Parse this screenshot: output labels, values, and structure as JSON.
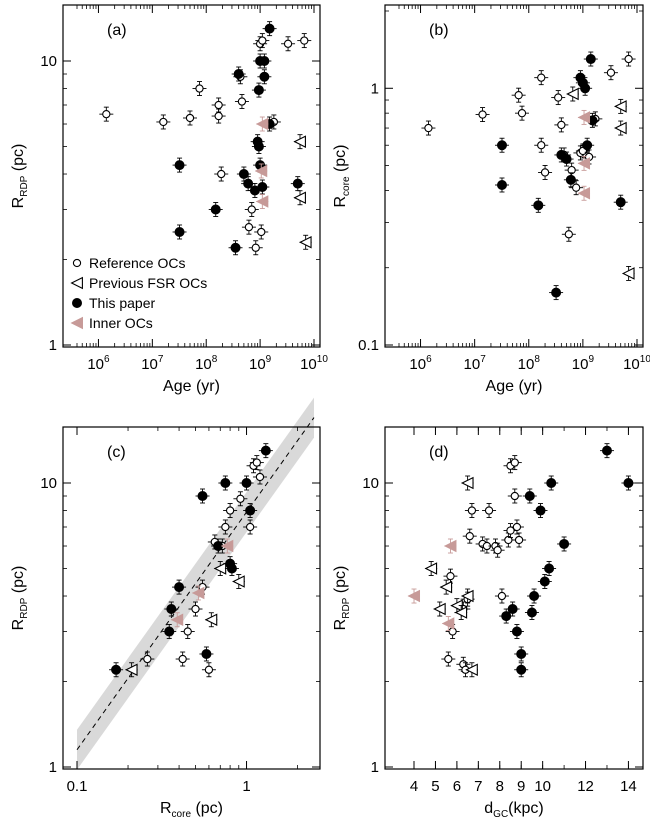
{
  "chart_data": [
    {
      "type": "scatter",
      "panel_tag": "(a)",
      "xlabel": "Age (yr)",
      "ylabel_main": "R",
      "ylabel_sub": "RDP",
      "ylabel_unit": " (pc)",
      "xscale": "log",
      "yscale": "log",
      "xlim": [
        400000,
        10000000000
      ],
      "ylim": [
        1,
        15
      ],
      "x_ticks": [
        {
          "v": 1000000,
          "base": "10",
          "exp": "6"
        },
        {
          "v": 10000000,
          "base": "10",
          "exp": "7"
        },
        {
          "v": 100000000,
          "base": "10",
          "exp": "8"
        },
        {
          "v": 1000000000,
          "base": "10",
          "exp": "9"
        },
        {
          "v": 10000000000,
          "base": "10",
          "exp": "10"
        }
      ],
      "y_ticks": [
        {
          "v": 1,
          "label": "1"
        },
        {
          "v": 10,
          "label": "10"
        }
      ],
      "legend": {
        "position": "bottom-left",
        "entries": [
          {
            "label": "Reference OCs",
            "series": "Reference OCs"
          },
          {
            "label": "Previous FSR OCs",
            "series": "Previous FSR OCs"
          },
          {
            "label": "This paper",
            "series": "This paper"
          },
          {
            "label": "Inner OCs",
            "series": "Inner OCs"
          }
        ]
      },
      "series": [
        {
          "name": "Reference OCs",
          "marker": "open-circle",
          "color": "#000000",
          "points": [
            [
              1400000.0,
              6.5
            ],
            [
              16000000.0,
              6.1
            ],
            [
              50000000.0,
              6.3
            ],
            [
              75000000.0,
              8.0
            ],
            [
              170000000.0,
              6.4
            ],
            [
              170000000.0,
              7.0
            ],
            [
              190000000.0,
              4.0
            ],
            [
              430000000.0,
              8.8
            ],
            [
              460000000.0,
              7.2
            ],
            [
              620000000.0,
              2.6
            ],
            [
              700000000.0,
              3.0
            ],
            [
              830000000.0,
              2.2
            ],
            [
              1000000000.0,
              11.5
            ],
            [
              1050000000.0,
              2.5
            ],
            [
              1100000000.0,
              11.8
            ],
            [
              1800000000.0,
              6.1
            ],
            [
              3300000000.0,
              11.5
            ],
            [
              6600000000.0,
              11.8
            ]
          ]
        },
        {
          "name": "Previous FSR OCs",
          "marker": "open-triangle-left",
          "color": "#000000",
          "points": [
            [
              5500000000.0,
              5.2
            ],
            [
              5500000000.0,
              3.3
            ],
            [
              7000000000.0,
              2.3
            ]
          ]
        },
        {
          "name": "This paper",
          "marker": "filled-circle",
          "color": "#000000",
          "points": [
            [
              32000000.0,
              4.3
            ],
            [
              32000000.0,
              2.5
            ],
            [
              150000000.0,
              3.0
            ],
            [
              350000000.0,
              2.2
            ],
            [
              400000000.0,
              9.0
            ],
            [
              500000000.0,
              4.0
            ],
            [
              600000000.0,
              3.7
            ],
            [
              800000000.0,
              3.5
            ],
            [
              900000000.0,
              5.2
            ],
            [
              950000000.0,
              5.0
            ],
            [
              950000000.0,
              7.9
            ],
            [
              1000000000.0,
              10.0
            ],
            [
              1000000000.0,
              4.3
            ],
            [
              1100000000.0,
              3.6
            ],
            [
              1200000000.0,
              10.0
            ],
            [
              1200000000.0,
              8.8
            ],
            [
              1500000000.0,
              13.0
            ],
            [
              1500000000.0,
              6.0
            ],
            [
              5000000000.0,
              3.7
            ]
          ]
        },
        {
          "name": "Inner OCs",
          "marker": "filled-triangle-left",
          "color": "#c79a98",
          "points": [
            [
              1100000000.0,
              6.0
            ],
            [
              1050000000.0,
              4.1
            ],
            [
              1100000000.0,
              3.2
            ]
          ]
        }
      ]
    },
    {
      "type": "scatter",
      "panel_tag": "(b)",
      "xlabel": "Age (yr)",
      "ylabel_main": "R",
      "ylabel_sub": "core",
      "ylabel_unit": " (pc)",
      "xscale": "log",
      "yscale": "log",
      "xlim": [
        400000,
        10000000000
      ],
      "ylim": [
        0.1,
        2
      ],
      "x_ticks": [
        {
          "v": 1000000,
          "base": "10",
          "exp": "6"
        },
        {
          "v": 10000000,
          "base": "10",
          "exp": "7"
        },
        {
          "v": 100000000,
          "base": "10",
          "exp": "8"
        },
        {
          "v": 1000000000,
          "base": "10",
          "exp": "9"
        },
        {
          "v": 10000000000,
          "base": "10",
          "exp": "10"
        }
      ],
      "y_ticks": [
        {
          "v": 0.1,
          "label": "0.1"
        },
        {
          "v": 1,
          "label": "1"
        }
      ],
      "series": [
        {
          "name": "Reference OCs",
          "marker": "open-circle",
          "color": "#000000",
          "points": [
            [
              1400000.0,
              0.7
            ],
            [
              14000000.0,
              0.79
            ],
            [
              65000000.0,
              0.94
            ],
            [
              75000000.0,
              0.8
            ],
            [
              170000000.0,
              1.1
            ],
            [
              170000000.0,
              0.6
            ],
            [
              200000000.0,
              0.47
            ],
            [
              350000000.0,
              0.92
            ],
            [
              400000000.0,
              0.72
            ],
            [
              450000000.0,
              0.55
            ],
            [
              550000000.0,
              0.27
            ],
            [
              620000000.0,
              0.48
            ],
            [
              750000000.0,
              0.41
            ],
            [
              900000000.0,
              0.56
            ],
            [
              1000000000.0,
              0.57
            ],
            [
              1300000000.0,
              0.54
            ],
            [
              1700000000.0,
              0.76
            ],
            [
              3300000000.0,
              1.15
            ],
            [
              7000000000.0,
              1.3
            ]
          ]
        },
        {
          "name": "Previous FSR OCs",
          "marker": "open-triangle-left",
          "color": "#000000",
          "points": [
            [
              650000000.0,
              0.95
            ],
            [
              5000000000.0,
              0.85
            ],
            [
              5000000000.0,
              0.7
            ],
            [
              7000000000.0,
              0.19
            ]
          ]
        },
        {
          "name": "This paper",
          "marker": "filled-circle",
          "color": "#000000",
          "points": [
            [
              32000000.0,
              0.6
            ],
            [
              32000000.0,
              0.42
            ],
            [
              150000000.0,
              0.35
            ],
            [
              320000000.0,
              0.16
            ],
            [
              400000000.0,
              0.55
            ],
            [
              500000000.0,
              0.53
            ],
            [
              600000000.0,
              0.44
            ],
            [
              900000000.0,
              1.1
            ],
            [
              1000000000.0,
              1.05
            ],
            [
              1100000000.0,
              1.0
            ],
            [
              1200000000.0,
              0.6
            ],
            [
              1400000000.0,
              1.3
            ],
            [
              1500000000.0,
              0.75
            ],
            [
              5000000000.0,
              0.36
            ]
          ]
        },
        {
          "name": "Inner OCs",
          "marker": "filled-triangle-left",
          "color": "#c79a98",
          "points": [
            [
              1050000000.0,
              0.77
            ],
            [
              1050000000.0,
              0.51
            ],
            [
              1050000000.0,
              0.39
            ]
          ]
        }
      ]
    },
    {
      "type": "scatter",
      "panel_tag": "(c)",
      "xlabel_main": "R",
      "xlabel_sub": "core",
      "xlabel_unit": " (pc)",
      "ylabel_main": "R",
      "ylabel_sub": "RDP",
      "ylabel_unit": " (pc)",
      "xscale": "log",
      "yscale": "log",
      "xlim": [
        0.1,
        2.5
      ],
      "ylim": [
        1,
        15
      ],
      "x_ticks": [
        {
          "v": 0.1,
          "label": "0.1"
        },
        {
          "v": 1,
          "label": "1"
        }
      ],
      "y_ticks": [
        {
          "v": 1,
          "label": "1"
        },
        {
          "v": 10,
          "label": "10"
        }
      ],
      "fit_line": {
        "x": [
          0.1,
          2.5
        ],
        "y": [
          1.15,
          17
        ]
      },
      "series": [
        {
          "name": "Reference OCs",
          "marker": "open-circle",
          "color": "#000000",
          "points": [
            [
              0.26,
              2.4
            ],
            [
              0.42,
              2.4
            ],
            [
              0.45,
              3.0
            ],
            [
              0.5,
              3.6
            ],
            [
              0.55,
              4.3
            ],
            [
              0.6,
              2.2
            ],
            [
              0.65,
              6.2
            ],
            [
              0.72,
              6.0
            ],
            [
              0.75,
              7.0
            ],
            [
              0.8,
              8.0
            ],
            [
              0.92,
              8.8
            ],
            [
              1.05,
              7.0
            ],
            [
              1.1,
              11.5
            ],
            [
              1.15,
              11.8
            ],
            [
              1.2,
              10.5
            ]
          ]
        },
        {
          "name": "Previous FSR OCs",
          "marker": "open-triangle-left",
          "color": "#000000",
          "points": [
            [
              0.21,
              2.2
            ],
            [
              0.62,
              3.3
            ],
            [
              0.7,
              5.0
            ],
            [
              0.9,
              4.5
            ]
          ]
        },
        {
          "name": "This paper",
          "marker": "filled-circle",
          "color": "#000000",
          "points": [
            [
              0.17,
              2.2
            ],
            [
              0.35,
              3.0
            ],
            [
              0.36,
              3.6
            ],
            [
              0.4,
              4.3
            ],
            [
              0.55,
              9.0
            ],
            [
              0.58,
              2.5
            ],
            [
              0.68,
              6.0
            ],
            [
              0.8,
              5.2
            ],
            [
              0.82,
              5.0
            ],
            [
              0.75,
              10.0
            ],
            [
              1.0,
              10.0
            ],
            [
              1.05,
              8.0
            ],
            [
              1.3,
              13.0
            ]
          ]
        },
        {
          "name": "Inner OCs",
          "marker": "filled-triangle-left",
          "color": "#c79a98",
          "points": [
            [
              0.39,
              3.3
            ],
            [
              0.52,
              4.1
            ],
            [
              0.77,
              6.0
            ]
          ]
        }
      ]
    },
    {
      "type": "scatter",
      "panel_tag": "(d)",
      "xlabel_main": "d",
      "xlabel_sub": "GC",
      "xlabel_unit": "(kpc)",
      "ylabel_main": "R",
      "ylabel_sub": "RDP",
      "ylabel_unit": " (pc)",
      "xscale": "linear",
      "yscale": "log",
      "xlim": [
        3.3,
        14.4
      ],
      "ylim": [
        1,
        15
      ],
      "x_ticks": [
        {
          "v": 4,
          "label": "4"
        },
        {
          "v": 5,
          "label": "5"
        },
        {
          "v": 6,
          "label": "6"
        },
        {
          "v": 7,
          "label": "7"
        },
        {
          "v": 8,
          "label": "8"
        },
        {
          "v": 9,
          "label": "9"
        },
        {
          "v": 10,
          "label": "10"
        },
        {
          "v": 12,
          "label": "12"
        },
        {
          "v": 14,
          "label": "14"
        }
      ],
      "y_ticks": [
        {
          "v": 1,
          "label": "1"
        },
        {
          "v": 10,
          "label": "10"
        }
      ],
      "series": [
        {
          "name": "Reference OCs",
          "marker": "open-circle",
          "color": "#000000",
          "points": [
            [
              5.6,
              2.4
            ],
            [
              5.7,
              4.7
            ],
            [
              5.8,
              3.0
            ],
            [
              6.3,
              2.3
            ],
            [
              6.3,
              3.6
            ],
            [
              6.4,
              2.2
            ],
            [
              6.5,
              3.9
            ],
            [
              6.6,
              6.5
            ],
            [
              6.7,
              8.0
            ],
            [
              7.2,
              6.1
            ],
            [
              7.4,
              6.0
            ],
            [
              7.5,
              8.0
            ],
            [
              7.8,
              6.0
            ],
            [
              7.9,
              5.8
            ],
            [
              8.1,
              4.0
            ],
            [
              8.4,
              6.3
            ],
            [
              8.5,
              6.8
            ],
            [
              8.5,
              11.5
            ],
            [
              8.7,
              11.8
            ],
            [
              8.7,
              9.0
            ],
            [
              8.8,
              7.0
            ],
            [
              8.9,
              6.3
            ]
          ]
        },
        {
          "name": "Previous FSR OCs",
          "marker": "open-triangle-left",
          "color": "#000000",
          "points": [
            [
              4.8,
              5.0
            ],
            [
              5.2,
              3.6
            ],
            [
              5.5,
              4.3
            ],
            [
              6.0,
              3.7
            ],
            [
              6.2,
              3.5
            ],
            [
              6.5,
              4.0
            ],
            [
              6.5,
              10.0
            ],
            [
              6.7,
              2.2
            ]
          ]
        },
        {
          "name": "This paper",
          "marker": "filled-circle",
          "color": "#000000",
          "points": [
            [
              8.3,
              3.4
            ],
            [
              8.6,
              3.6
            ],
            [
              8.8,
              3.0
            ],
            [
              9.0,
              2.5
            ],
            [
              9.0,
              2.2
            ],
            [
              9.4,
              9.0
            ],
            [
              9.5,
              3.5
            ],
            [
              9.6,
              4.0
            ],
            [
              9.9,
              8.0
            ],
            [
              10.1,
              4.5
            ],
            [
              10.3,
              5.0
            ],
            [
              10.4,
              10.0
            ],
            [
              11.0,
              6.1
            ],
            [
              13.0,
              13.0
            ],
            [
              14.0,
              10.0
            ]
          ]
        },
        {
          "name": "Inner OCs",
          "marker": "filled-triangle-left",
          "color": "#c79a98",
          "points": [
            [
              4.0,
              4.0
            ],
            [
              5.6,
              3.2
            ],
            [
              5.7,
              6.0
            ]
          ]
        }
      ]
    }
  ]
}
